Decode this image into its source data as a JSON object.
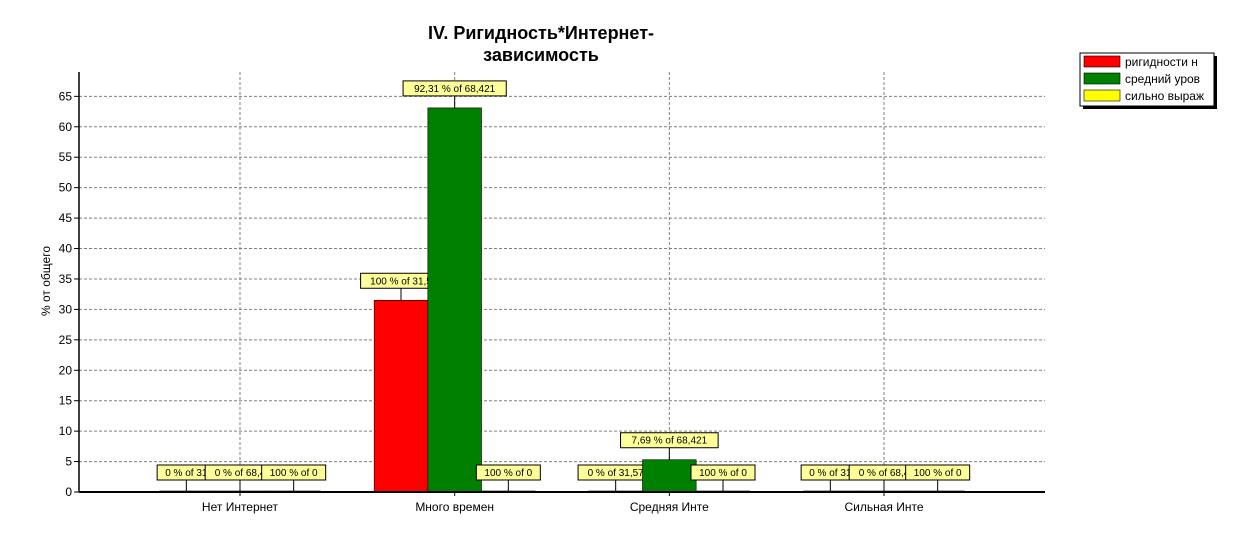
{
  "chart_data": {
    "type": "bar",
    "title_lines": [
      "IV. Ригидность*Интернет-",
      "зависимость"
    ],
    "ylabel": "% от общего",
    "xlabel": "",
    "ylim": [
      0,
      69
    ],
    "yticks": [
      0,
      5,
      10,
      15,
      20,
      25,
      30,
      35,
      40,
      45,
      50,
      55,
      60,
      65
    ],
    "grid": true,
    "legend_position": "top-right",
    "categories": [
      "Нет Интернет",
      "Много времен",
      "Средняя Инте",
      "Сильная Инте"
    ],
    "series": [
      {
        "name": "ригидности н",
        "color": "#ff0000",
        "values": [
          0,
          31.5,
          0,
          0
        ],
        "labels": [
          "0 % of 31",
          "100 % of 31,5",
          "0 % of 31,57",
          "0 % of 31"
        ]
      },
      {
        "name": "средний уров",
        "color": "#008000",
        "values": [
          0,
          63.1,
          5.3,
          0
        ],
        "labels": [
          "0 % of 68,4",
          "92,31 % of 68,421",
          "7,69 % of 68,421",
          "0 % of 68,4"
        ]
      },
      {
        "name": "сильно выраж",
        "color": "#ffff00",
        "values": [
          0,
          0,
          0,
          0
        ],
        "labels": [
          "100 % of 0",
          "100 % of 0",
          "100 % of 0",
          "100 % of 0"
        ]
      }
    ]
  }
}
